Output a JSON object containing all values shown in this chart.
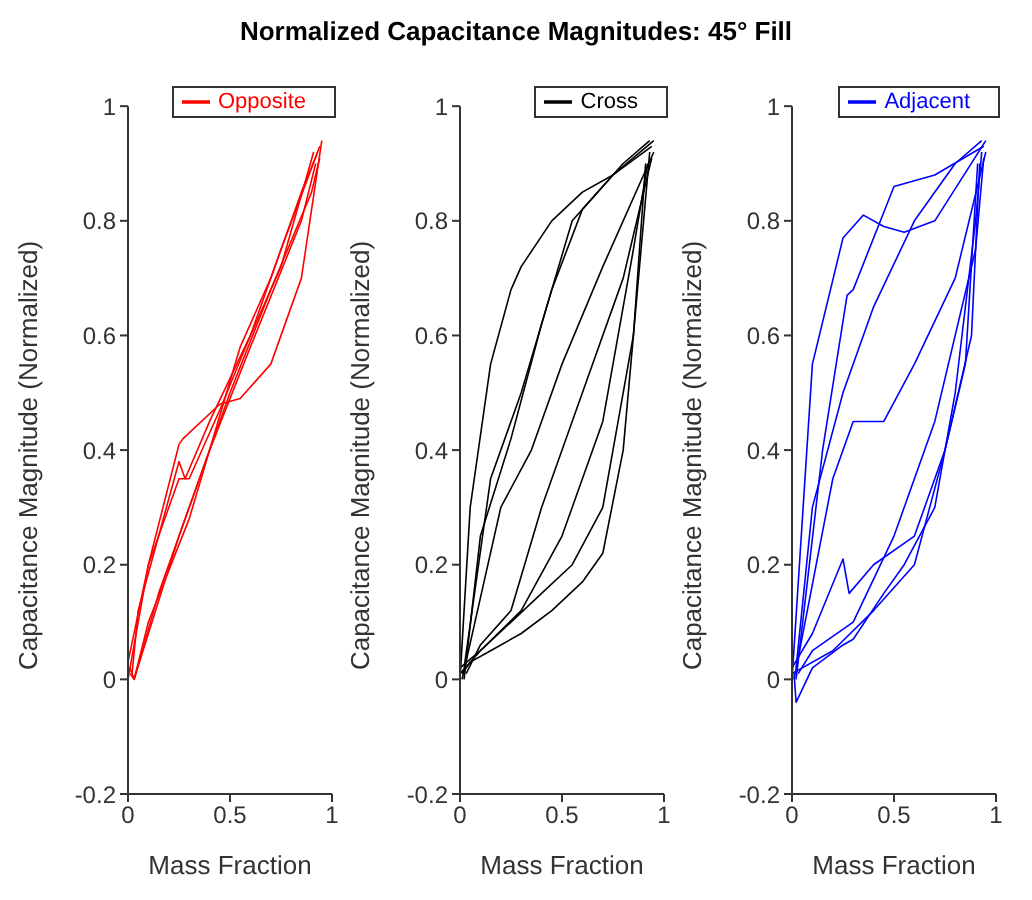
{
  "chart_data": [
    {
      "type": "line",
      "title": "Normalized Capacitance Magnitudes: 45° Fill",
      "xlabel": "Mass Fraction",
      "ylabel": "Capacitance Magnitude (Normalized)",
      "xlim": [
        0,
        1
      ],
      "xticks": [
        0,
        0.5,
        1
      ],
      "ylim": [
        -0.2,
        1
      ],
      "yticks": [
        -0.2,
        0,
        0.2,
        0.4,
        0.6,
        0.8,
        1
      ],
      "grid": false,
      "legend": "top right",
      "marker": "none",
      "line_style": "solid",
      "series": [
        {
          "name": "Opposite",
          "color": "#ff0000",
          "x": [
            0,
            0.05,
            0.1,
            0.25,
            0.27,
            0.3,
            0.45,
            0.55,
            0.7,
            0.85,
            0.95
          ],
          "values": [
            0,
            0.1,
            0.2,
            0.41,
            0.42,
            0.43,
            0.48,
            0.49,
            0.55,
            0.7,
            0.94
          ]
        },
        {
          "color": "#ff0000",
          "x": [
            0.01,
            0.03,
            0.1,
            0.3,
            0.5,
            0.55,
            0.7,
            0.85,
            0.93
          ],
          "values": [
            0.02,
            0,
            0.1,
            0.28,
            0.52,
            0.58,
            0.7,
            0.85,
            0.92
          ]
        },
        {
          "color": "#ff0000",
          "x": [
            0.02,
            0.05,
            0.15,
            0.25,
            0.28,
            0.4,
            0.6,
            0.75,
            0.94
          ],
          "values": [
            0.01,
            0.12,
            0.25,
            0.38,
            0.35,
            0.45,
            0.6,
            0.75,
            0.93
          ]
        },
        {
          "color": "#ff0000",
          "x": [
            0.03,
            0.1,
            0.25,
            0.4,
            0.6,
            0.85,
            0.92
          ],
          "values": [
            0,
            0.08,
            0.25,
            0.4,
            0.58,
            0.8,
            0.9
          ]
        },
        {
          "color": "#ff0000",
          "x": [
            0,
            0.1,
            0.25,
            0.3,
            0.45,
            0.6,
            0.75,
            0.91
          ],
          "values": [
            0.03,
            0.2,
            0.35,
            0.35,
            0.47,
            0.6,
            0.72,
            0.92
          ]
        },
        {
          "color": "#ff0000",
          "x": [
            0.01,
            0.03,
            0.15,
            0.3,
            0.5,
            0.7,
            0.9,
            0.94
          ],
          "values": [
            0.01,
            0,
            0.15,
            0.3,
            0.5,
            0.68,
            0.85,
            0.91
          ]
        }
      ]
    },
    {
      "type": "line",
      "xlabel": "Mass Fraction",
      "ylabel": "Capacitance Magnitude (Normalized)",
      "xlim": [
        0,
        1
      ],
      "xticks": [
        0,
        0.5,
        1
      ],
      "ylim": [
        -0.2,
        1
      ],
      "yticks": [
        -0.2,
        0,
        0.2,
        0.4,
        0.6,
        0.8,
        1
      ],
      "grid": false,
      "legend": "top right",
      "marker": "none",
      "line_style": "solid",
      "series": [
        {
          "name": "Cross",
          "color": "#000000",
          "x": [
            0,
            0.05,
            0.15,
            0.25,
            0.3,
            0.45,
            0.6,
            0.75,
            0.95
          ],
          "values": [
            0,
            0.3,
            0.55,
            0.68,
            0.72,
            0.8,
            0.85,
            0.88,
            0.94
          ]
        },
        {
          "color": "#000000",
          "x": [
            0.01,
            0.05,
            0.15,
            0.3,
            0.45,
            0.6,
            0.7,
            0.8,
            0.9,
            0.93
          ],
          "values": [
            0.01,
            0.03,
            0.05,
            0.08,
            0.12,
            0.17,
            0.22,
            0.4,
            0.8,
            0.92
          ]
        },
        {
          "color": "#000000",
          "x": [
            0.02,
            0.1,
            0.25,
            0.4,
            0.55,
            0.75,
            0.94
          ],
          "values": [
            0,
            0.25,
            0.42,
            0.62,
            0.8,
            0.88,
            0.93
          ]
        },
        {
          "color": "#000000",
          "x": [
            0,
            0.1,
            0.3,
            0.5,
            0.7,
            0.85,
            0.92
          ],
          "values": [
            0.02,
            0.05,
            0.12,
            0.25,
            0.45,
            0.75,
            0.9
          ]
        },
        {
          "color": "#000000",
          "x": [
            0.01,
            0.2,
            0.35,
            0.5,
            0.7,
            0.95
          ],
          "values": [
            0,
            0.3,
            0.4,
            0.55,
            0.72,
            0.92
          ]
        },
        {
          "color": "#000000",
          "x": [
            0.03,
            0.1,
            0.25,
            0.4,
            0.6,
            0.8,
            0.94
          ],
          "values": [
            0.01,
            0.06,
            0.12,
            0.3,
            0.5,
            0.7,
            0.91
          ]
        },
        {
          "color": "#000000",
          "x": [
            0.02,
            0.15,
            0.3,
            0.45,
            0.6,
            0.8,
            0.93
          ],
          "values": [
            0.02,
            0.35,
            0.5,
            0.68,
            0.82,
            0.9,
            0.94
          ]
        },
        {
          "color": "#000000",
          "x": [
            0,
            0.1,
            0.25,
            0.4,
            0.55,
            0.7,
            0.85,
            0.91
          ],
          "values": [
            0.01,
            0.05,
            0.1,
            0.15,
            0.2,
            0.3,
            0.6,
            0.9
          ]
        }
      ]
    },
    {
      "type": "line",
      "xlabel": "Mass Fraction",
      "ylabel": "Capacitance Magnitude (Normalized)",
      "xlim": [
        0,
        1
      ],
      "xticks": [
        0,
        0.5,
        1
      ],
      "ylim": [
        -0.2,
        1
      ],
      "yticks": [
        -0.2,
        0,
        0.2,
        0.4,
        0.6,
        0.8,
        1
      ],
      "grid": false,
      "legend": "top right",
      "marker": "none",
      "line_style": "solid",
      "series": [
        {
          "name": "Adjacent",
          "color": "#0000ff",
          "x": [
            0,
            0.1,
            0.25,
            0.35,
            0.45,
            0.55,
            0.7,
            0.95
          ],
          "values": [
            0,
            0.55,
            0.77,
            0.81,
            0.79,
            0.78,
            0.8,
            0.94
          ]
        },
        {
          "color": "#0000ff",
          "x": [
            0.01,
            0.02,
            0.1,
            0.25,
            0.3,
            0.45,
            0.55,
            0.7,
            0.8,
            0.9,
            0.93
          ],
          "values": [
            0.01,
            -0.04,
            0.02,
            0.06,
            0.07,
            0.15,
            0.2,
            0.3,
            0.5,
            0.8,
            0.92
          ]
        },
        {
          "color": "#0000ff",
          "x": [
            0.02,
            0.15,
            0.27,
            0.3,
            0.5,
            0.7,
            0.94
          ],
          "values": [
            0,
            0.4,
            0.67,
            0.68,
            0.86,
            0.88,
            0.93
          ]
        },
        {
          "color": "#0000ff",
          "x": [
            0,
            0.1,
            0.25,
            0.28,
            0.4,
            0.6,
            0.75,
            0.88,
            0.92
          ],
          "values": [
            0.02,
            0.08,
            0.21,
            0.15,
            0.2,
            0.25,
            0.4,
            0.6,
            0.9
          ]
        },
        {
          "color": "#0000ff",
          "x": [
            0.01,
            0.2,
            0.3,
            0.45,
            0.6,
            0.8,
            0.95
          ],
          "values": [
            0,
            0.35,
            0.45,
            0.45,
            0.55,
            0.7,
            0.92
          ]
        },
        {
          "color": "#0000ff",
          "x": [
            0.03,
            0.1,
            0.3,
            0.5,
            0.7,
            0.9,
            0.94
          ],
          "values": [
            0.01,
            0.05,
            0.1,
            0.25,
            0.45,
            0.75,
            0.91
          ]
        },
        {
          "color": "#0000ff",
          "x": [
            0.02,
            0.1,
            0.25,
            0.4,
            0.6,
            0.8,
            0.93
          ],
          "values": [
            0.02,
            0.3,
            0.5,
            0.65,
            0.8,
            0.9,
            0.94
          ]
        },
        {
          "color": "#0000ff",
          "x": [
            0,
            0.2,
            0.4,
            0.6,
            0.75,
            0.85,
            0.91
          ],
          "values": [
            0.01,
            0.05,
            0.12,
            0.2,
            0.4,
            0.55,
            0.9
          ]
        }
      ]
    }
  ]
}
